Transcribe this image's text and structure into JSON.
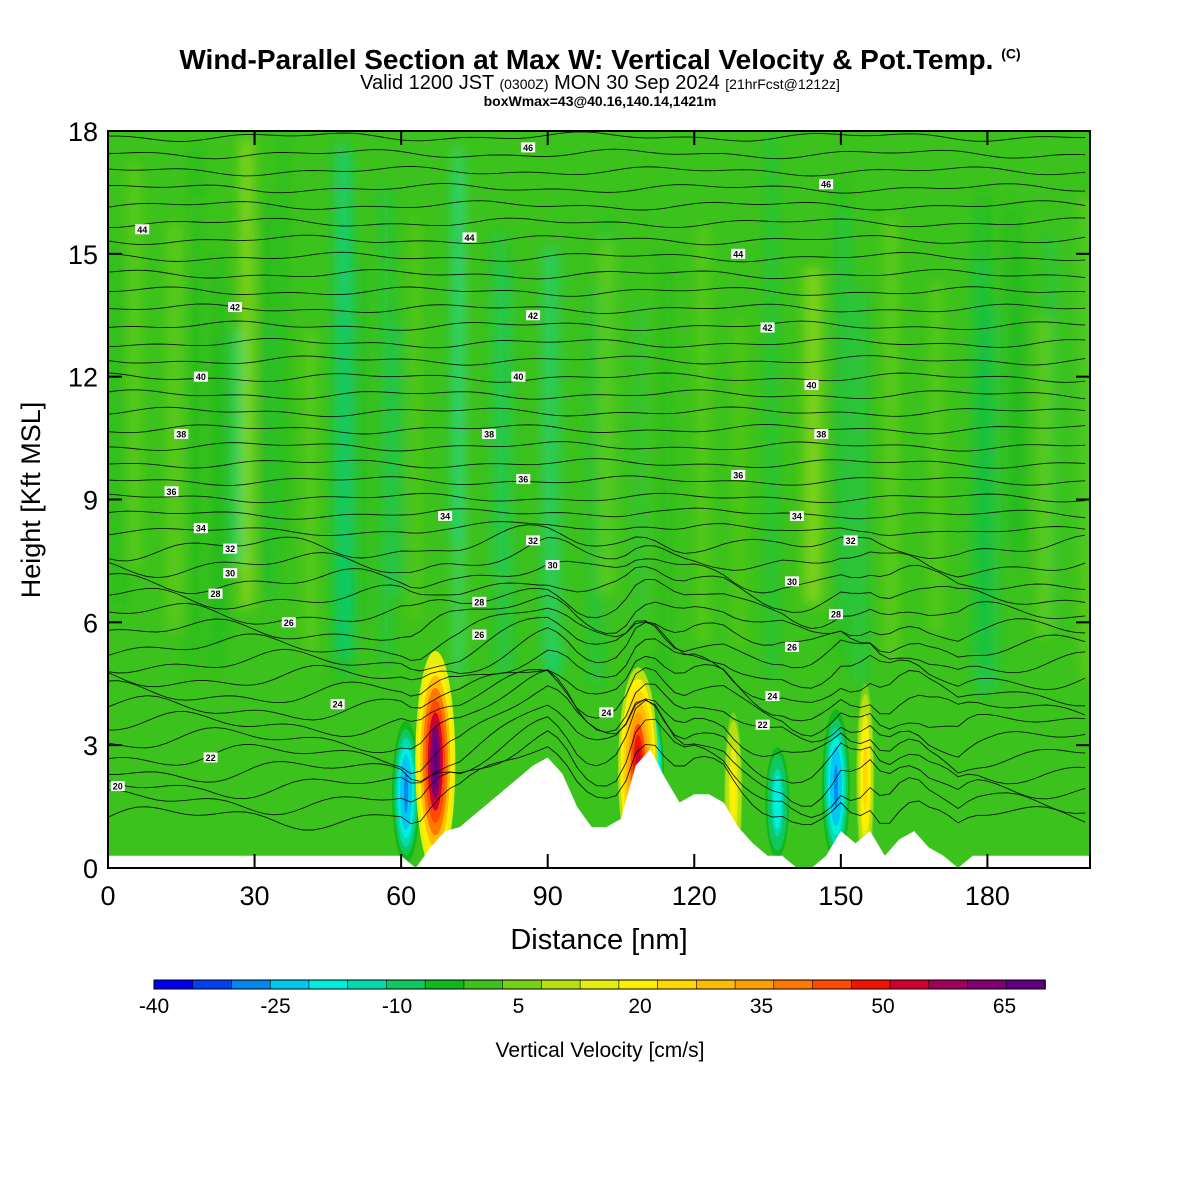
{
  "header": {
    "title_main": "Wind-Parallel Section at Max W: Vertical Velocity & Pot.Temp.",
    "title_mark": "(C)",
    "valid_prefix": "Valid 1200 JST",
    "valid_z": "(0300Z)",
    "valid_date": "MON 30 Sep 2024",
    "forecast": "[21hrFcst@1212z]",
    "box_info": "boxWmax=43@40.16,140.14,1421m"
  },
  "chart_data": {
    "type": "heatmap",
    "xlabel": "Distance [nm]",
    "ylabel": "Height [Kft MSL]",
    "xlim": [
      0,
      201
    ],
    "ylim": [
      0,
      18
    ],
    "x_ticks": [
      0,
      30,
      60,
      90,
      120,
      150,
      180
    ],
    "y_ticks": [
      0,
      3,
      6,
      9,
      12,
      15,
      18
    ],
    "colorbar": {
      "label": "Vertical Velocity [cm/s]",
      "range": [
        -40,
        70
      ],
      "tick_labels": [
        -40,
        -25,
        -10,
        5,
        20,
        35,
        50,
        65
      ],
      "colors": [
        "#0000f0",
        "#0040f0",
        "#0088f0",
        "#00c8f0",
        "#00eedc",
        "#00dcb0",
        "#10c860",
        "#10b81c",
        "#3cc21c",
        "#78d214",
        "#b8e010",
        "#e6ee0c",
        "#fff000",
        "#ffd800",
        "#ffbc00",
        "#ffa000",
        "#ff7800",
        "#ff4a00",
        "#f01400",
        "#d00030",
        "#a00058",
        "#800070",
        "#600080"
      ]
    },
    "terrain_profile": {
      "x_nm": [
        0,
        60,
        63,
        66,
        69,
        72,
        75,
        78,
        81,
        84,
        87,
        90,
        93,
        96,
        99,
        102,
        105,
        108,
        111,
        114,
        117,
        120,
        123,
        126,
        129,
        132,
        135,
        138,
        141,
        144,
        147,
        150,
        153,
        156,
        159,
        162,
        165,
        168,
        171,
        174,
        177,
        180,
        201
      ],
      "height_kft": [
        0.3,
        0.3,
        0.0,
        0.5,
        0.9,
        1.0,
        1.3,
        1.6,
        1.9,
        2.2,
        2.5,
        2.7,
        2.3,
        1.5,
        1.0,
        1.0,
        1.2,
        2.5,
        2.9,
        2.2,
        1.6,
        1.8,
        1.8,
        1.6,
        1.0,
        0.6,
        0.3,
        0.3,
        0.0,
        0.0,
        0.3,
        0.9,
        0.6,
        0.9,
        0.3,
        0.7,
        0.9,
        0.5,
        0.3,
        0.0,
        0.3,
        0.3,
        0.3
      ]
    },
    "updrafts": [
      {
        "x_nm": 67,
        "top_kft": 5.0,
        "max_cm_s": 70
      },
      {
        "x_nm": 108.5,
        "top_kft": 4.6,
        "max_cm_s": 55
      },
      {
        "x_nm": 155,
        "top_kft": 4.2,
        "max_cm_s": 25
      },
      {
        "x_nm": 128,
        "top_kft": 3.5,
        "max_cm_s": 20
      }
    ],
    "downdrafts": [
      {
        "x_nm": 61,
        "top_kft": 3.5,
        "min_cm_s": -30
      },
      {
        "x_nm": 111,
        "top_kft": 4.0,
        "min_cm_s": -40
      },
      {
        "x_nm": 149,
        "top_kft": 3.8,
        "min_cm_s": -30
      },
      {
        "x_nm": 137,
        "top_kft": 3.0,
        "min_cm_s": -20
      }
    ],
    "theta_labels": [
      {
        "text": "46",
        "x_nm": 86,
        "y_kft": 17.6
      },
      {
        "text": "46",
        "x_nm": 147,
        "y_kft": 16.7
      },
      {
        "text": "44",
        "x_nm": 7,
        "y_kft": 15.6
      },
      {
        "text": "44",
        "x_nm": 74,
        "y_kft": 15.4
      },
      {
        "text": "44",
        "x_nm": 129,
        "y_kft": 15.0
      },
      {
        "text": "42",
        "x_nm": 26,
        "y_kft": 13.7
      },
      {
        "text": "42",
        "x_nm": 87,
        "y_kft": 13.5
      },
      {
        "text": "42",
        "x_nm": 135,
        "y_kft": 13.2
      },
      {
        "text": "40",
        "x_nm": 19,
        "y_kft": 12.0
      },
      {
        "text": "40",
        "x_nm": 84,
        "y_kft": 12.0
      },
      {
        "text": "40",
        "x_nm": 144,
        "y_kft": 11.8
      },
      {
        "text": "38",
        "x_nm": 15,
        "y_kft": 10.6
      },
      {
        "text": "38",
        "x_nm": 78,
        "y_kft": 10.6
      },
      {
        "text": "38",
        "x_nm": 146,
        "y_kft": 10.6
      },
      {
        "text": "36",
        "x_nm": 13,
        "y_kft": 9.2
      },
      {
        "text": "36",
        "x_nm": 85,
        "y_kft": 9.5
      },
      {
        "text": "36",
        "x_nm": 129,
        "y_kft": 9.6
      },
      {
        "text": "34",
        "x_nm": 19,
        "y_kft": 8.3
      },
      {
        "text": "34",
        "x_nm": 69,
        "y_kft": 8.6
      },
      {
        "text": "34",
        "x_nm": 141,
        "y_kft": 8.6
      },
      {
        "text": "32",
        "x_nm": 25,
        "y_kft": 7.8
      },
      {
        "text": "32",
        "x_nm": 87,
        "y_kft": 8.0
      },
      {
        "text": "32",
        "x_nm": 152,
        "y_kft": 8.0
      },
      {
        "text": "30",
        "x_nm": 25,
        "y_kft": 7.2
      },
      {
        "text": "30",
        "x_nm": 91,
        "y_kft": 7.4
      },
      {
        "text": "30",
        "x_nm": 140,
        "y_kft": 7.0
      },
      {
        "text": "28",
        "x_nm": 22,
        "y_kft": 6.7
      },
      {
        "text": "28",
        "x_nm": 76,
        "y_kft": 6.5
      },
      {
        "text": "28",
        "x_nm": 149,
        "y_kft": 6.2
      },
      {
        "text": "26",
        "x_nm": 37,
        "y_kft": 6.0
      },
      {
        "text": "26",
        "x_nm": 76,
        "y_kft": 5.7
      },
      {
        "text": "26",
        "x_nm": 140,
        "y_kft": 5.4
      },
      {
        "text": "24",
        "x_nm": 47,
        "y_kft": 4.0
      },
      {
        "text": "24",
        "x_nm": 102,
        "y_kft": 3.8
      },
      {
        "text": "24",
        "x_nm": 136,
        "y_kft": 4.2
      },
      {
        "text": "22",
        "x_nm": 134,
        "y_kft": 3.5
      },
      {
        "text": "22",
        "x_nm": 21,
        "y_kft": 2.7
      },
      {
        "text": "20",
        "x_nm": 2,
        "y_kft": 2.0
      }
    ]
  }
}
